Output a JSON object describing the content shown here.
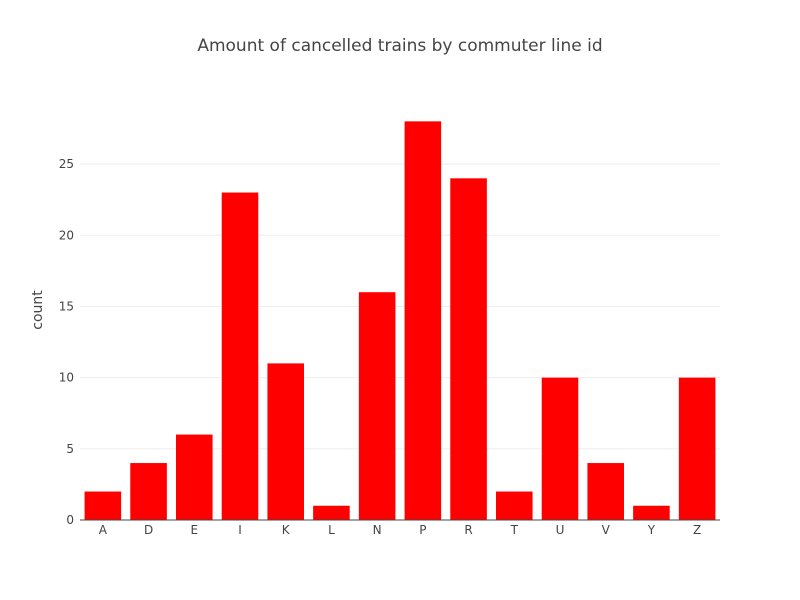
{
  "chart_data": {
    "type": "bar",
    "title": "Amount of cancelled trains by commuter line id",
    "xlabel": "",
    "ylabel": "count",
    "categories": [
      "A",
      "D",
      "E",
      "I",
      "K",
      "L",
      "N",
      "P",
      "R",
      "T",
      "U",
      "V",
      "Y",
      "Z"
    ],
    "values": [
      2,
      4,
      6,
      23,
      11,
      1,
      16,
      28,
      24,
      2,
      10,
      4,
      1,
      10
    ],
    "ylim": [
      0,
      29.5
    ],
    "yticks": [
      0,
      5,
      10,
      15,
      20,
      25
    ],
    "grid": true,
    "legend": "none",
    "bar_color": "#ff0000"
  }
}
